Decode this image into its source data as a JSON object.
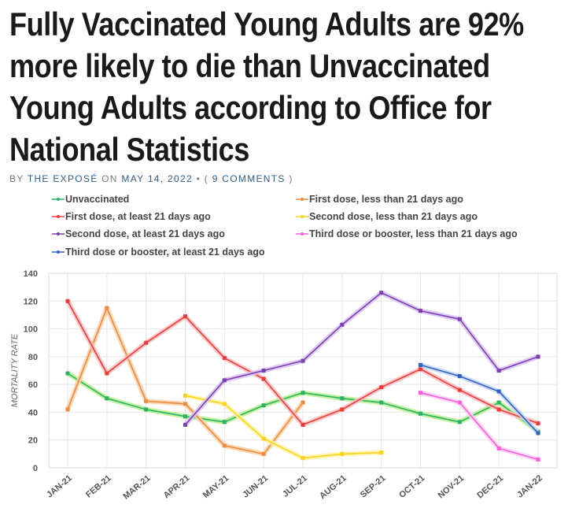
{
  "headline": {
    "lines": [
      "Fully Vaccinated Young Adults are 92%",
      "more likely to die than Unvaccinated",
      "Young Adults according to Office for",
      "National Statistics"
    ]
  },
  "byline": {
    "by": "BY",
    "author": "THE EXPOSÉ",
    "on": "ON",
    "date": "MAY 14, 2022",
    "sep": "•",
    "open": "(",
    "comments": "9 COMMENTS",
    "close": ")"
  },
  "chart_data": {
    "type": "line",
    "title": "",
    "xlabel": "",
    "ylabel": "MORTALITY RATE",
    "ylim": [
      0,
      140
    ],
    "yticks": [
      0,
      20,
      40,
      60,
      80,
      100,
      120,
      140
    ],
    "grid": true,
    "legend_position": "top",
    "categories": [
      "JAN-21",
      "FEB-21",
      "MAR-21",
      "APR-21",
      "MAY-21",
      "JUN-21",
      "JUL-21",
      "AUG-21",
      "SEP-21",
      "OCT-21",
      "NOV-21",
      "DEC-21",
      "JAN-22"
    ],
    "series": [
      {
        "name": "Unvaccinated",
        "color": "#2ab26a",
        "glow": "#b6f08a",
        "values": [
          68,
          50,
          42,
          37,
          33,
          45,
          54,
          50,
          47,
          39,
          33,
          47,
          26
        ]
      },
      {
        "name": "First dose, less than 21 days ago",
        "color": "#f08a3c",
        "glow": "#fcd0a8",
        "values": [
          42,
          115,
          48,
          46,
          16,
          10,
          47,
          null,
          null,
          null,
          null,
          null,
          null
        ]
      },
      {
        "name": "First dose, at least 21 days ago",
        "color": "#f03a3a",
        "glow": "#fbc0c0",
        "values": [
          120,
          68,
          90,
          109,
          79,
          64,
          31,
          42,
          58,
          71,
          56,
          42,
          32
        ]
      },
      {
        "name": "Second dose, less than 21 days ago",
        "color": "#ffd21a",
        "glow": "#fff3a8",
        "values": [
          null,
          null,
          null,
          52,
          46,
          21,
          7,
          10,
          11,
          null,
          null,
          null,
          null
        ]
      },
      {
        "name": "Second dose, at least 21 days ago",
        "color": "#7b3fb0",
        "glow": "#d7c1ee",
        "values": [
          null,
          null,
          null,
          31,
          63,
          70,
          77,
          103,
          126,
          113,
          107,
          70,
          80
        ]
      },
      {
        "name": "Third dose or booster, less than 21 days ago",
        "color": "#ff5ce0",
        "glow": "#ffd0f4",
        "values": [
          null,
          null,
          null,
          null,
          null,
          null,
          null,
          null,
          null,
          54,
          47,
          14,
          6
        ]
      },
      {
        "name": "Third dose or booster, at least 21 days ago",
        "color": "#2f62c0",
        "glow": "#c4d4f2",
        "values": [
          null,
          null,
          null,
          null,
          null,
          null,
          null,
          null,
          null,
          74,
          66,
          55,
          25
        ]
      }
    ]
  }
}
